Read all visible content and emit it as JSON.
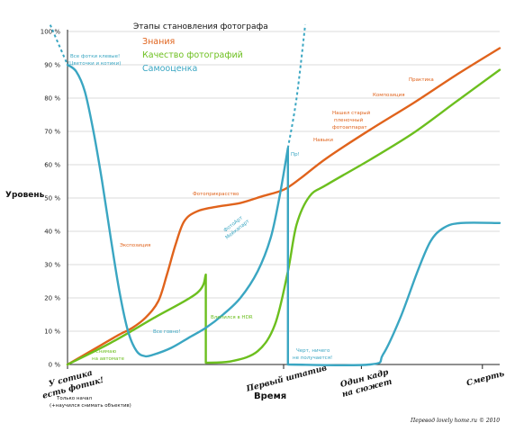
{
  "chart_data": {
    "type": "line",
    "title": "Этапы становления фотографа",
    "ylabel": "Уровень",
    "xlabel": "Время",
    "ylim": [
      0,
      100
    ],
    "yticks": [
      "0 %",
      "10 %",
      "20 %",
      "30 %",
      "40 %",
      "50 %",
      "60 %",
      "70 %",
      "80 %",
      "90 %",
      "100 %"
    ],
    "y_tick_values": [
      0,
      10,
      20,
      30,
      40,
      50,
      60,
      70,
      80,
      90,
      100
    ],
    "xlim": [
      0,
      100
    ],
    "x_ticks": [
      {
        "x": 0,
        "label": "У сотика есть фотик!"
      },
      {
        "x": 50,
        "label": "Первый штатив"
      },
      {
        "x": 68,
        "label": "Один кадр на сюжет"
      },
      {
        "x": 96,
        "label": "Смерть"
      }
    ],
    "grid": true,
    "legend": "top-center",
    "series": [
      {
        "name": "Знания",
        "color": "#e0631c",
        "points": [
          [
            0,
            0
          ],
          [
            4,
            3
          ],
          [
            8,
            6
          ],
          [
            12,
            9
          ],
          [
            15,
            11
          ],
          [
            18,
            14
          ],
          [
            21,
            19
          ],
          [
            23,
            27
          ],
          [
            25,
            36
          ],
          [
            27,
            43
          ],
          [
            30,
            46
          ],
          [
            35,
            47.5
          ],
          [
            40,
            48.5
          ],
          [
            45,
            50.5
          ],
          [
            50,
            52.5
          ],
          [
            54,
            56
          ],
          [
            60,
            62
          ],
          [
            70,
            70.5
          ],
          [
            80,
            78.5
          ],
          [
            90,
            87
          ],
          [
            100,
            95
          ]
        ]
      },
      {
        "name": "Качество фотографий",
        "color": "#6cbf1e",
        "points": [
          [
            0,
            0
          ],
          [
            10,
            6.5
          ],
          [
            20,
            14
          ],
          [
            30,
            21.5
          ],
          [
            32,
            27
          ],
          [
            32,
            0.5
          ],
          [
            38,
            1
          ],
          [
            44,
            4
          ],
          [
            48,
            12
          ],
          [
            51,
            28
          ],
          [
            53,
            42
          ],
          [
            56,
            50.5
          ],
          [
            60,
            54
          ],
          [
            70,
            61.5
          ],
          [
            80,
            69.5
          ],
          [
            90,
            79
          ],
          [
            100,
            88.5
          ]
        ]
      },
      {
        "name": "Самооценка",
        "color": "#3aa6c2",
        "points": [
          [
            0,
            90
          ],
          [
            2,
            88
          ],
          [
            4,
            82
          ],
          [
            6,
            70
          ],
          [
            8,
            55
          ],
          [
            10,
            38
          ],
          [
            12,
            22
          ],
          [
            14,
            10
          ],
          [
            16,
            4
          ],
          [
            18,
            2.5
          ],
          [
            20,
            3
          ],
          [
            24,
            5
          ],
          [
            28,
            8
          ],
          [
            32,
            11
          ],
          [
            36,
            15
          ],
          [
            40,
            20
          ],
          [
            44,
            28
          ],
          [
            47,
            38
          ],
          [
            49,
            50
          ],
          [
            51,
            65
          ],
          [
            51,
            0
          ],
          [
            70,
            0
          ],
          [
            73,
            3
          ],
          [
            77,
            14
          ],
          [
            81,
            28
          ],
          [
            84,
            37
          ],
          [
            87,
            41
          ],
          [
            91,
            42.5
          ],
          [
            100,
            42.5
          ]
        ],
        "dashed_extensions": [
          [
            [
              -4,
              102
            ],
            [
              0,
              90
            ]
          ],
          [
            [
              51,
              65
            ],
            [
              53,
              80
            ],
            [
              55,
              102
            ]
          ]
        ]
      }
    ],
    "annotations": [
      {
        "text": "Все фотки клевые!",
        "series": "Самооценка"
      },
      {
        "text": "(Цветочки и котики)",
        "series": "Самооценка"
      },
      {
        "text": "Экспозиция",
        "series": "Знания"
      },
      {
        "text": "Фотоприкрасство",
        "series": "Знания"
      },
      {
        "text": "ФотоАрт",
        "series": "Самооценка"
      },
      {
        "text": "Мейкапарт",
        "series": "Самооценка"
      },
      {
        "text": "Пр!",
        "series": "Самооценка"
      },
      {
        "text": "Все говно!",
        "series": "Самооценка"
      },
      {
        "text": "Влепился в HDR",
        "series": "Качество фотографий"
      },
      {
        "text": "Снимаю",
        "series": "Качество фотографий"
      },
      {
        "text": "на автомате",
        "series": "Качество фотографий"
      },
      {
        "text": "Навыки",
        "series": "Знания"
      },
      {
        "text": "Нашел старый",
        "series": "Знания"
      },
      {
        "text": "пленочный",
        "series": "Знания"
      },
      {
        "text": "фотоаппарат",
        "series": "Знания"
      },
      {
        "text": "Композиция",
        "series": "Знания"
      },
      {
        "text": "Практика",
        "series": "Знания"
      },
      {
        "text": "Черт, ничего",
        "series": "Самооценка"
      },
      {
        "text": "не получается!",
        "series": "Самооценка"
      }
    ],
    "footnotes": {
      "below_axis_1": "Только начал",
      "below_axis_2": "(+научился снимать объектив)",
      "credit": "Перевод lovely home.ru © 2010"
    }
  }
}
